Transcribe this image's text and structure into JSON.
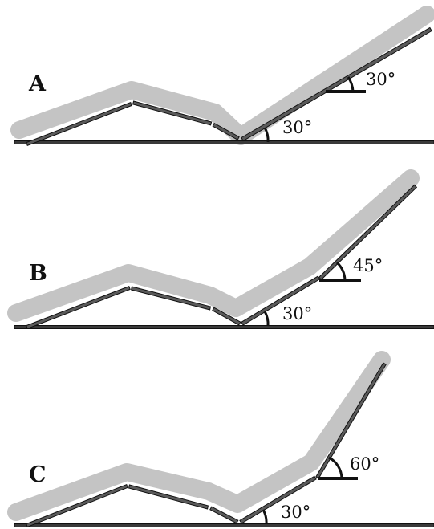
{
  "panels": [
    {
      "id": "A",
      "letter": "A",
      "inner_angle_label": "30°",
      "back_angle_label": "30°",
      "inner_angle_deg": 30,
      "back_angle_deg": 30
    },
    {
      "id": "B",
      "letter": "B",
      "inner_angle_label": "30°",
      "back_angle_label": "45°",
      "inner_angle_deg": 30,
      "back_angle_deg": 45
    },
    {
      "id": "C",
      "letter": "C",
      "inner_angle_label": "30°",
      "back_angle_label": "60°",
      "inner_angle_deg": 30,
      "back_angle_deg": 60
    }
  ],
  "colors": {
    "cushion": "#c4c4c4",
    "board": "#5a5a5a",
    "outline": "#111111",
    "background": "#ffffff"
  }
}
